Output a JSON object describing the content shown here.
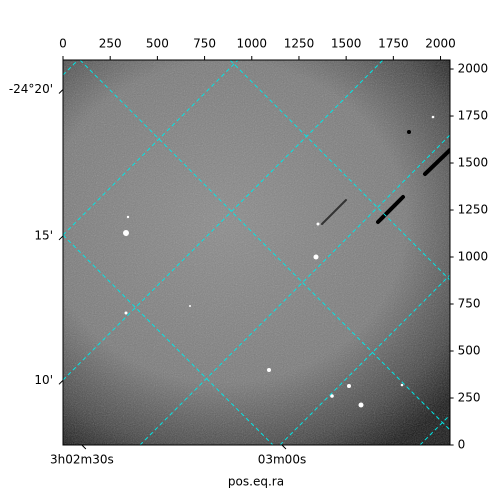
{
  "chart_data": {
    "type": "image",
    "xlabel": "pos.eq.ra",
    "xlim": [
      0,
      2048
    ],
    "ylim": [
      0,
      2048
    ],
    "xticks": [
      0,
      250,
      500,
      750,
      1000,
      1250,
      1500,
      1750,
      2000
    ],
    "yticks": [
      0,
      250,
      500,
      750,
      1000,
      1250,
      1500,
      1750,
      2000
    ],
    "ra_ticks": [
      {
        "value": 100,
        "label": "3h02m30s"
      },
      {
        "value": 1160,
        "label": "03m00s"
      }
    ],
    "dec_ticks": [
      {
        "value": 1891,
        "label": "-24°20'"
      },
      {
        "value": 1112,
        "label": "15'"
      },
      {
        "value": 344,
        "label": "10'"
      }
    ],
    "grid_color": "#00e5e5"
  }
}
